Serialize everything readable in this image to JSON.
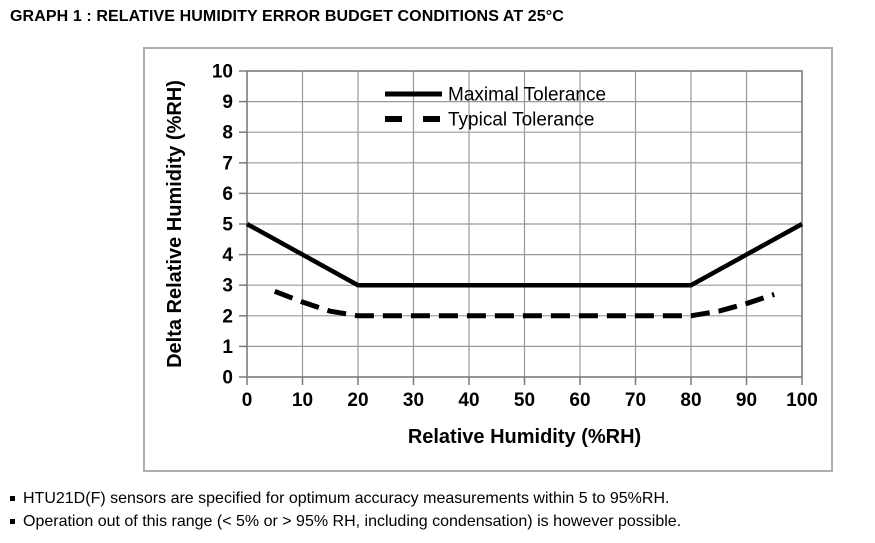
{
  "page": {
    "title": "GRAPH 1 : RELATIVE HUMIDITY ERROR BUDGET CONDITIONS AT 25°C",
    "footnotes": [
      "HTU21D(F) sensors are specified for optimum accuracy measurements within 5 to 95%RH.",
      "Operation out of this range (< 5% or > 95% RH, including condensation) is however possible."
    ]
  },
  "chart_data": {
    "type": "line",
    "title": "",
    "xlabel": "Relative Humidity (%RH)",
    "ylabel": "Delta Relative Humidity (%RH)",
    "xlim": [
      0,
      100
    ],
    "ylim": [
      0,
      10
    ],
    "xticks": [
      0,
      10,
      20,
      30,
      40,
      50,
      60,
      70,
      80,
      90,
      100
    ],
    "yticks": [
      0,
      1,
      2,
      3,
      4,
      5,
      6,
      7,
      8,
      9,
      10
    ],
    "grid": true,
    "legend": {
      "position": "top-center-inside",
      "entries": [
        "Maximal Tolerance",
        "Typical Tolerance"
      ]
    },
    "series": [
      {
        "name": "Maximal Tolerance",
        "line_style": "solid",
        "color": "#000000",
        "points": [
          [
            0,
            5
          ],
          [
            20,
            3
          ],
          [
            80,
            3
          ],
          [
            100,
            5
          ]
        ]
      },
      {
        "name": "Typical Tolerance",
        "line_style": "dashed",
        "color": "#000000",
        "points": [
          [
            5,
            2.8
          ],
          [
            10,
            2.45
          ],
          [
            15,
            2.15
          ],
          [
            20,
            2
          ],
          [
            80,
            2
          ],
          [
            85,
            2.15
          ],
          [
            90,
            2.4
          ],
          [
            95,
            2.7
          ]
        ]
      }
    ],
    "colors": {
      "grid": "#9a9a9a",
      "axis": "#7a7a7a",
      "text": "#000000",
      "background": "#ffffff"
    }
  }
}
